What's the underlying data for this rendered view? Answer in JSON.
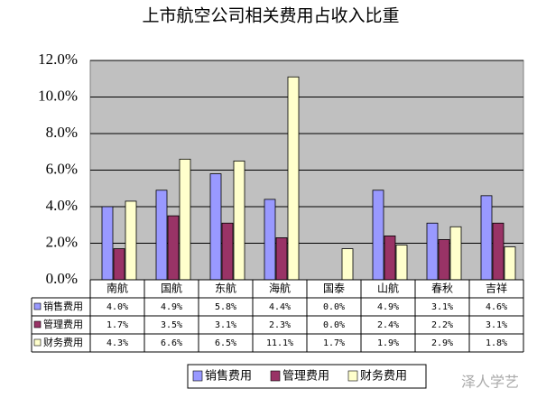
{
  "chart_data": {
    "type": "bar",
    "title": "上市航空公司相关费用占收入比重",
    "categories": [
      "南航",
      "国航",
      "东航",
      "海航",
      "国泰",
      "山航",
      "春秋",
      "吉祥"
    ],
    "series": [
      {
        "name": "销售费用",
        "color": "#9999ff",
        "values": [
          4.0,
          4.9,
          5.8,
          4.4,
          0.0,
          4.9,
          3.1,
          4.6
        ],
        "value_labels": [
          "4.0%",
          "4.9%",
          "5.8%",
          "4.4%",
          "0.0%",
          "4.9%",
          "3.1%",
          "4.6%"
        ]
      },
      {
        "name": "管理费用",
        "color": "#993366",
        "values": [
          1.7,
          3.5,
          3.1,
          2.3,
          0.0,
          2.4,
          2.2,
          3.1
        ],
        "value_labels": [
          "1.7%",
          "3.5%",
          "3.1%",
          "2.3%",
          "0.0%",
          "2.4%",
          "2.2%",
          "3.1%"
        ]
      },
      {
        "name": "财务费用",
        "color": "#ffffcc",
        "values": [
          4.3,
          6.6,
          6.5,
          11.1,
          1.7,
          1.9,
          2.9,
          1.8
        ],
        "value_labels": [
          "4.3%",
          "6.6%",
          "6.5%",
          "11.1%",
          "1.7%",
          "1.9%",
          "2.9%",
          "1.8%"
        ]
      }
    ],
    "ylim": [
      0,
      12
    ],
    "yticks": [
      {
        "value": 0,
        "label": "0.0%"
      },
      {
        "value": 2,
        "label": "2.0%"
      },
      {
        "value": 4,
        "label": "4.0%"
      },
      {
        "value": 6,
        "label": "6.0%"
      },
      {
        "value": 8,
        "label": "8.0%"
      },
      {
        "value": 10,
        "label": "10.0%"
      },
      {
        "value": 12,
        "label": "12.0%"
      }
    ],
    "grid": true,
    "plot_background": "#c0c0c0",
    "watermark": "泽人学艺"
  }
}
